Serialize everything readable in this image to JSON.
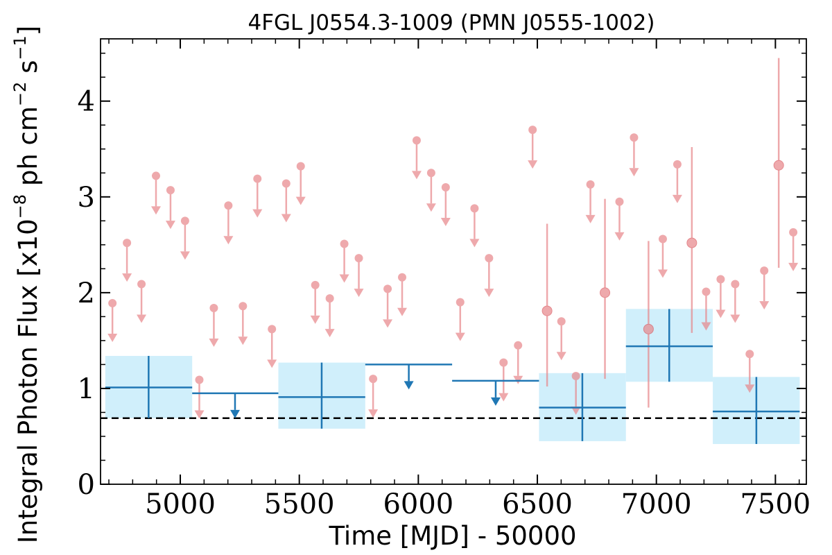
{
  "chart_data": {
    "type": "scatter",
    "title": "4FGL J0554.3-1009 (PMN J0555-1002)",
    "xlabel": "Time [MJD] - 50000",
    "ylabel_main": "Integral Photon Flux [x10",
    "ylabel_exp1": "−8",
    "ylabel_mid": " ph cm",
    "ylabel_exp2": "−2",
    "ylabel_s": " s",
    "ylabel_exp3": "−1",
    "ylabel_end": "]",
    "xlim": [
      4665,
      7630
    ],
    "ylim": [
      0,
      4.65
    ],
    "xticks": [
      5000,
      5500,
      6000,
      6500,
      7000,
      7500
    ],
    "yticks": [
      0,
      1,
      2,
      3,
      4
    ],
    "reference_level": 0.69,
    "colors": {
      "yearly": "#1f77b4",
      "yearly_band": "#cdeefb",
      "monthly": "#e8868a",
      "reference": "#000000"
    },
    "yearly_points": [
      {
        "x": 4867,
        "x_lo": 4685,
        "x_hi": 5050,
        "y": 1.01,
        "y_lo": 0.69,
        "y_hi": 1.34
      },
      {
        "x": 5594,
        "x_lo": 5412,
        "x_hi": 5777,
        "y": 0.91,
        "y_lo": 0.58,
        "y_hi": 1.27
      },
      {
        "x": 6689,
        "x_lo": 6507,
        "x_hi": 6872,
        "y": 0.8,
        "y_lo": 0.45,
        "y_hi": 1.16
      },
      {
        "x": 7054,
        "x_lo": 6872,
        "x_hi": 7237,
        "y": 1.44,
        "y_lo": 1.07,
        "y_hi": 1.83
      },
      {
        "x": 7420,
        "x_lo": 7237,
        "x_hi": 7602,
        "y": 0.76,
        "y_lo": 0.42,
        "y_hi": 1.12
      }
    ],
    "yearly_upper_limits": [
      {
        "x": 5230,
        "x_lo": 5050,
        "x_hi": 5412,
        "y": 0.95
      },
      {
        "x": 5960,
        "x_lo": 5777,
        "x_hi": 6142,
        "y": 1.25
      },
      {
        "x": 6325,
        "x_lo": 6142,
        "x_hi": 6507,
        "y": 1.08
      }
    ],
    "monthly_upper_limits": [
      {
        "x": 4715,
        "y": 1.89
      },
      {
        "x": 4776,
        "y": 2.52
      },
      {
        "x": 4837,
        "y": 2.09
      },
      {
        "x": 4898,
        "y": 3.22
      },
      {
        "x": 4959,
        "y": 3.07
      },
      {
        "x": 5020,
        "y": 2.75
      },
      {
        "x": 5080,
        "y": 1.09
      },
      {
        "x": 5141,
        "y": 1.84
      },
      {
        "x": 5202,
        "y": 2.91
      },
      {
        "x": 5263,
        "y": 1.86
      },
      {
        "x": 5324,
        "y": 3.19
      },
      {
        "x": 5385,
        "y": 1.62
      },
      {
        "x": 5445,
        "y": 3.14
      },
      {
        "x": 5506,
        "y": 3.32
      },
      {
        "x": 5567,
        "y": 2.08
      },
      {
        "x": 5628,
        "y": 1.94
      },
      {
        "x": 5689,
        "y": 2.51
      },
      {
        "x": 5750,
        "y": 2.36
      },
      {
        "x": 5810,
        "y": 1.1
      },
      {
        "x": 5871,
        "y": 2.04
      },
      {
        "x": 5932,
        "y": 2.16
      },
      {
        "x": 5993,
        "y": 3.59
      },
      {
        "x": 6054,
        "y": 3.25
      },
      {
        "x": 6115,
        "y": 3.1
      },
      {
        "x": 6176,
        "y": 1.9
      },
      {
        "x": 6236,
        "y": 2.88
      },
      {
        "x": 6297,
        "y": 2.36
      },
      {
        "x": 6358,
        "y": 1.27
      },
      {
        "x": 6419,
        "y": 1.45
      },
      {
        "x": 6480,
        "y": 3.7
      },
      {
        "x": 6601,
        "y": 1.7
      },
      {
        "x": 6662,
        "y": 1.13
      },
      {
        "x": 6723,
        "y": 3.13
      },
      {
        "x": 6845,
        "y": 2.95
      },
      {
        "x": 6906,
        "y": 3.62
      },
      {
        "x": 7027,
        "y": 2.56
      },
      {
        "x": 7088,
        "y": 3.34
      },
      {
        "x": 7209,
        "y": 2.01
      },
      {
        "x": 7270,
        "y": 2.14
      },
      {
        "x": 7331,
        "y": 2.09
      },
      {
        "x": 7392,
        "y": 1.36
      },
      {
        "x": 7453,
        "y": 2.23
      },
      {
        "x": 7575,
        "y": 2.63
      }
    ],
    "monthly_detections": [
      {
        "x": 6541,
        "y": 1.81,
        "y_lo": 1.02,
        "y_hi": 2.72
      },
      {
        "x": 6784,
        "y": 2.0,
        "y_lo": 1.1,
        "y_hi": 2.98
      },
      {
        "x": 6967,
        "y": 1.62,
        "y_lo": 0.8,
        "y_hi": 2.54
      },
      {
        "x": 7149,
        "y": 2.52,
        "y_lo": 1.58,
        "y_hi": 3.52
      },
      {
        "x": 7514,
        "y": 3.33,
        "y_lo": 2.26,
        "y_hi": 4.45
      }
    ]
  }
}
